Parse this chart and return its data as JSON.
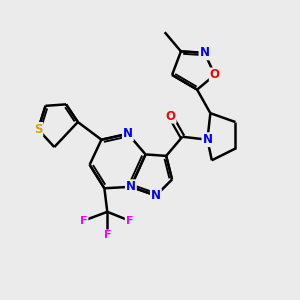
{
  "background_color": "#ebebeb",
  "atom_colors": {
    "N": "#0000ff",
    "O": "#ff0000",
    "S": "#ccaa00",
    "F": "#ff00ff",
    "C": "#000000"
  },
  "bond_color": "#000000",
  "bond_width": 1.8,
  "figsize": [
    3.0,
    3.0
  ],
  "dpi": 100
}
